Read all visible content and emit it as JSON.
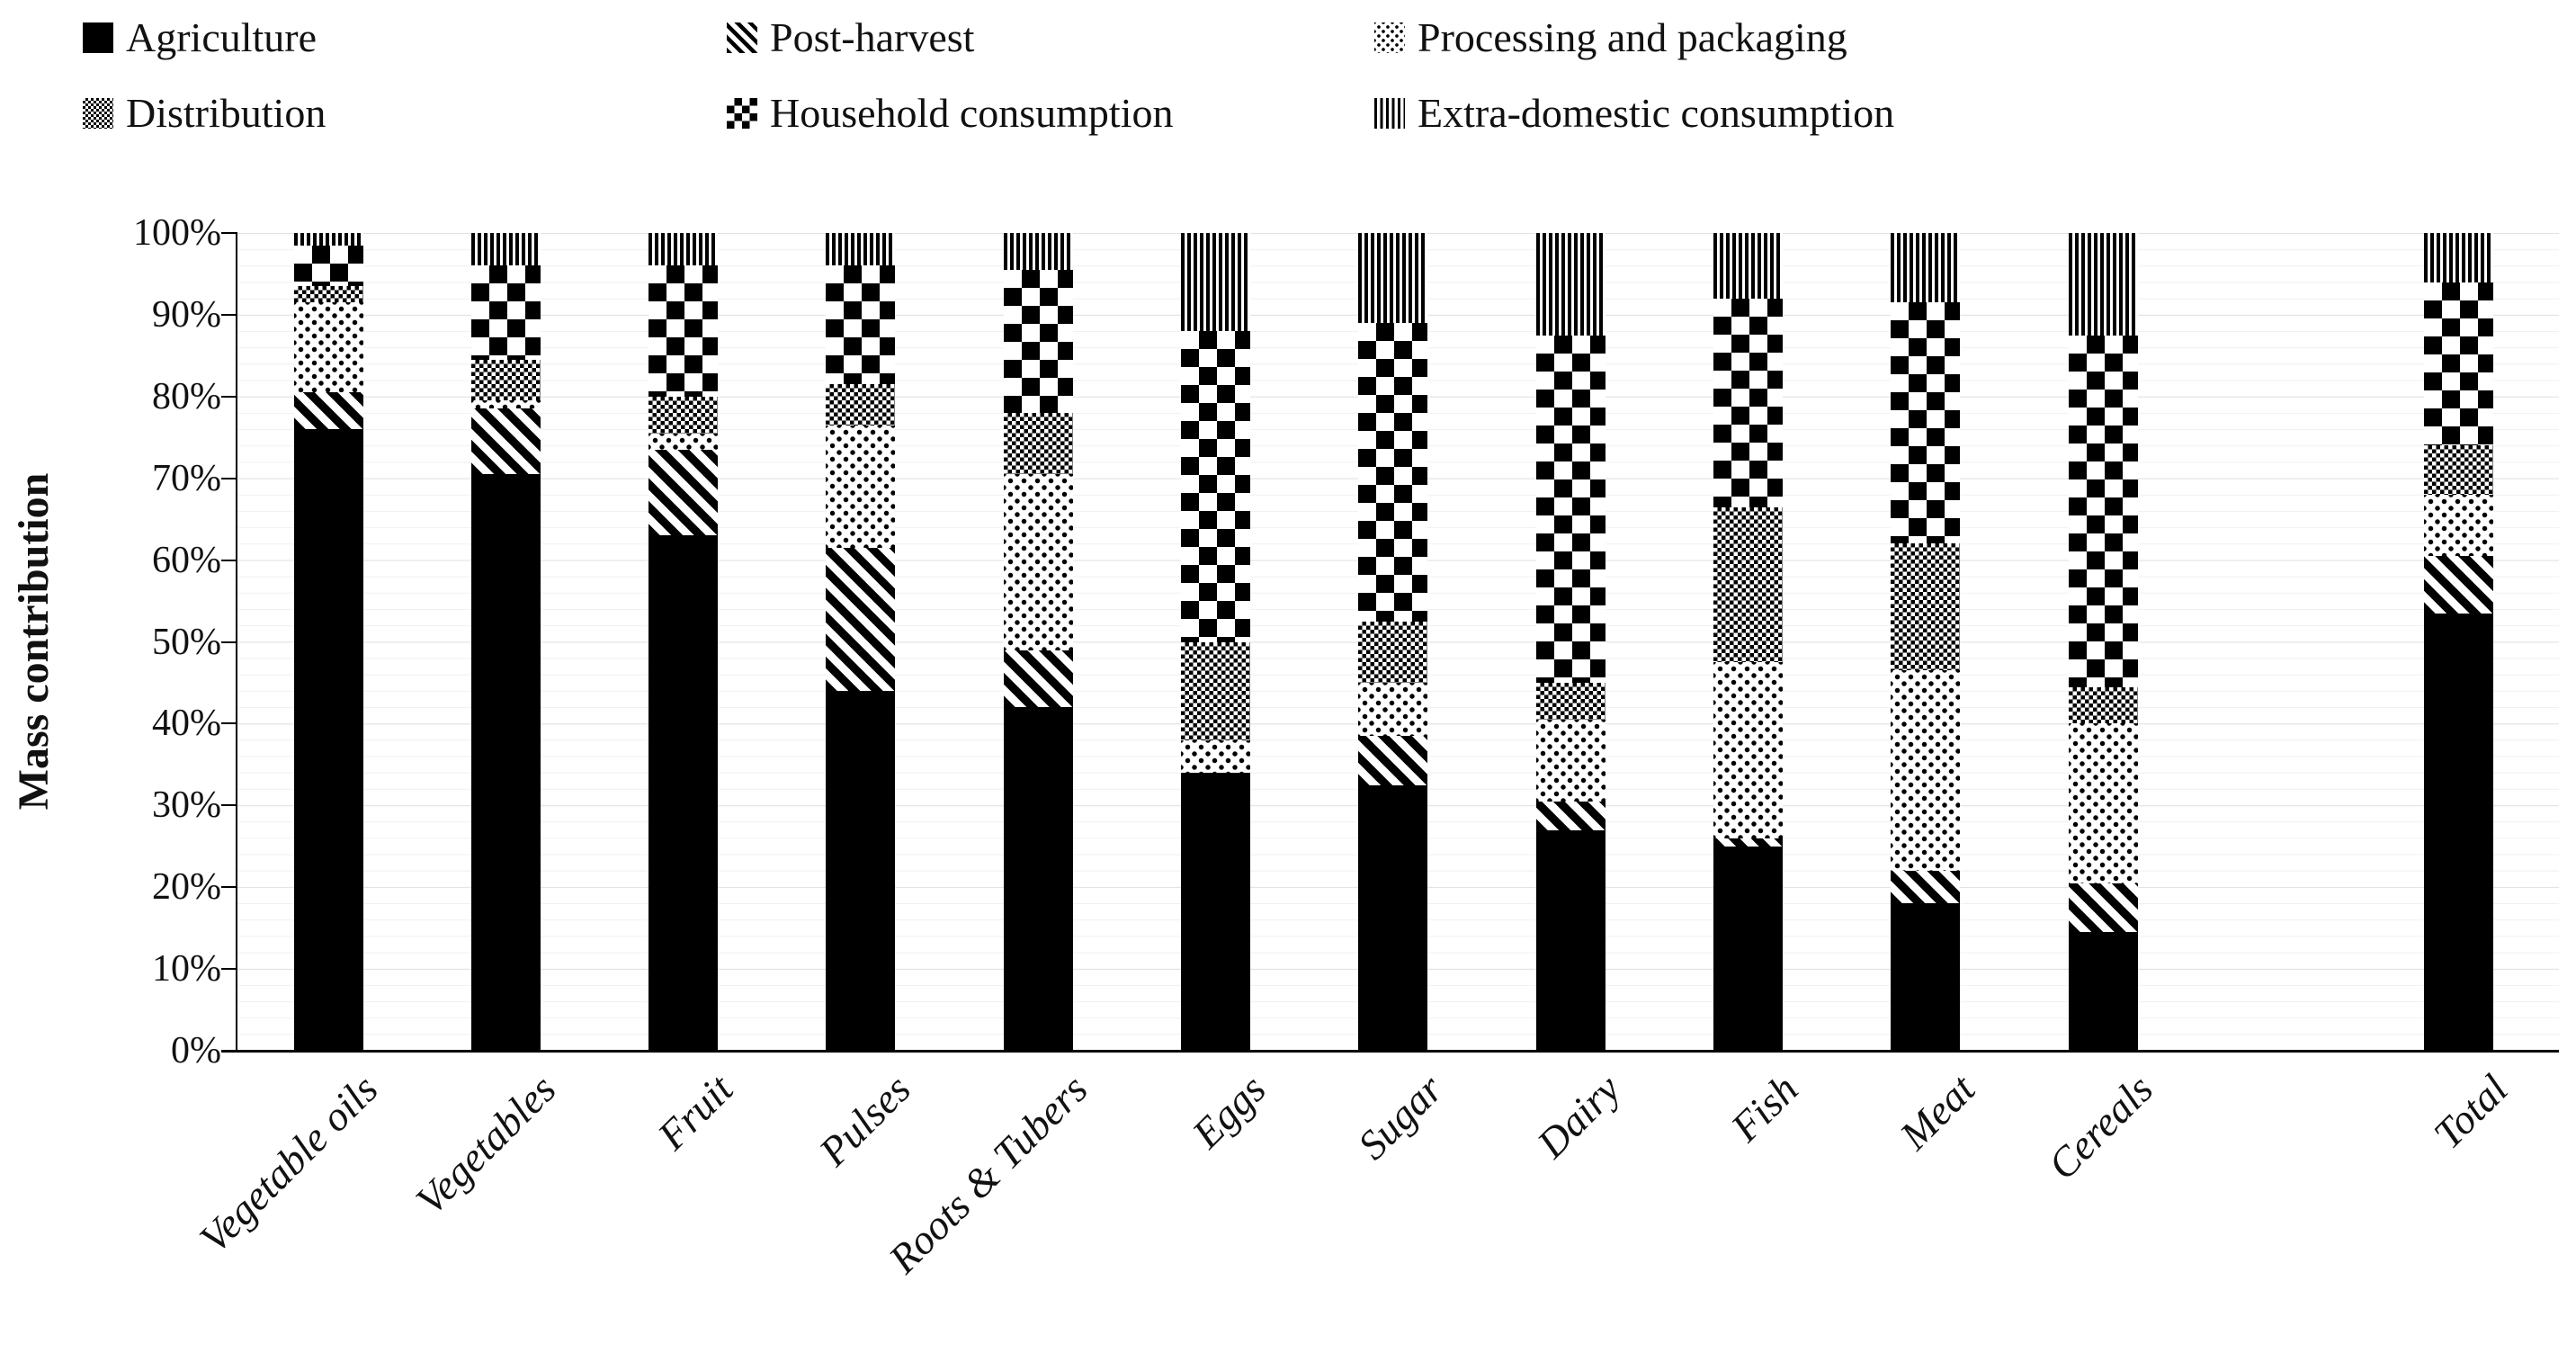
{
  "legend": {
    "items": [
      {
        "label": "Agriculture",
        "pattern": "solid"
      },
      {
        "label": "Post-harvest",
        "pattern": "diagonal-stripes"
      },
      {
        "label": "Processing and packaging",
        "pattern": "dots"
      },
      {
        "label": "Distribution",
        "pattern": "fine-check"
      },
      {
        "label": "Household consumption",
        "pattern": "checkerboard"
      },
      {
        "label": "Extra-domestic consumption",
        "pattern": "vertical-stripes"
      }
    ]
  },
  "y_axis": {
    "title": "Mass contribution",
    "tick_labels": [
      "100%",
      "90%",
      "80%",
      "70%",
      "60%",
      "50%",
      "40%",
      "30%",
      "20%",
      "10%",
      "0%"
    ]
  },
  "chart_data": {
    "type": "bar",
    "subtype": "100-percent-stacked",
    "title": "",
    "xlabel": "",
    "ylabel": "Mass contribution",
    "ylim": [
      0,
      100
    ],
    "unit": "percent",
    "grid": "horizontal",
    "legend_position": "top",
    "categories": [
      "Vegetable oils",
      "Vegetables",
      "Fruit",
      "Pulses",
      "Roots & Tubers",
      "Eggs",
      "Sugar",
      "Dairy",
      "Fish",
      "Meat",
      "Cereals",
      "Total"
    ],
    "series": [
      {
        "name": "Agriculture",
        "pattern": "solid",
        "values": [
          76,
          70.5,
          63,
          44,
          42,
          34,
          32.5,
          27,
          25,
          18,
          14.5,
          53.5
        ]
      },
      {
        "name": "Post-harvest",
        "pattern": "diagonal-stripes",
        "values": [
          4.5,
          8,
          10.5,
          17.5,
          7,
          0,
          6,
          3.5,
          1,
          4,
          6,
          7
        ]
      },
      {
        "name": "Processing and packaging",
        "pattern": "dots",
        "values": [
          11,
          1,
          2,
          15,
          21.5,
          4,
          6.5,
          10,
          21.5,
          24.5,
          19.5,
          7.5
        ]
      },
      {
        "name": "Distribution",
        "pattern": "fine-check",
        "values": [
          2,
          5,
          4.5,
          5,
          7.5,
          12,
          7.5,
          4.5,
          19,
          15.5,
          4.5,
          6
        ]
      },
      {
        "name": "Household consumption",
        "pattern": "checkerboard",
        "values": [
          5,
          11.5,
          16,
          14.5,
          17.5,
          38,
          36.5,
          42.5,
          25.5,
          29.5,
          43,
          20
        ]
      },
      {
        "name": "Extra-domestic consumption",
        "pattern": "vertical-stripes",
        "values": [
          1.5,
          4,
          4,
          4,
          4.5,
          12,
          11,
          12.5,
          8,
          8.5,
          12.5,
          6
        ]
      }
    ]
  },
  "colors": {
    "bar_ink": "#000000",
    "background": "#ffffff",
    "grid_minor": "#f0f0f0",
    "grid_major": "#e2e2e2",
    "axis": "#000000",
    "text": "#111111"
  }
}
